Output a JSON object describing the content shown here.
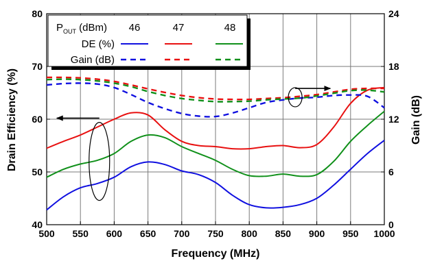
{
  "chart_data": {
    "type": "line",
    "title": "",
    "xlabel": "Frequency (MHz)",
    "ylabel": "Drain Efficiency (%)",
    "y2label": "Gain (dB)",
    "xlim": [
      500,
      1000
    ],
    "ylim": [
      40,
      80
    ],
    "y2lim": [
      0,
      24
    ],
    "xticks": [
      "500",
      "550",
      "600",
      "650",
      "700",
      "750",
      "800",
      "850",
      "900",
      "950",
      "1000"
    ],
    "yticks": [
      "40",
      "50",
      "60",
      "70",
      "80"
    ],
    "y2ticks": [
      "0",
      "6",
      "12",
      "18",
      "24"
    ],
    "grid": true,
    "legend": {
      "placement": "top-left",
      "header_label": "P",
      "header_sub": "OUT",
      "header_unit": " (dBm)",
      "columns": [
        "46",
        "47",
        "48"
      ],
      "rows": [
        "DE (%)",
        "Gain (dB)"
      ]
    },
    "colors": {
      "46": "#1010e0",
      "47": "#e81010",
      "48": "#10901a"
    },
    "series": [
      {
        "name": "DE (%)",
        "pout": "46",
        "axis": "left",
        "dash": false,
        "x": [
          500,
          525,
          550,
          575,
          600,
          625,
          650,
          675,
          700,
          725,
          750,
          775,
          800,
          825,
          850,
          875,
          900,
          925,
          950,
          975,
          1000
        ],
        "y": [
          42.8,
          45.3,
          47.0,
          47.8,
          49.0,
          51.0,
          51.9,
          51.4,
          50.2,
          49.5,
          48.0,
          45.6,
          43.8,
          43.2,
          43.3,
          43.8,
          45.0,
          47.5,
          50.5,
          53.5,
          56.0
        ]
      },
      {
        "name": "DE (%)",
        "pout": "47",
        "axis": "left",
        "dash": false,
        "x": [
          500,
          525,
          550,
          575,
          600,
          625,
          650,
          675,
          700,
          725,
          750,
          775,
          800,
          825,
          850,
          875,
          900,
          925,
          950,
          975,
          1000
        ],
        "y": [
          54.5,
          55.8,
          57.0,
          58.5,
          60.0,
          61.2,
          60.8,
          58.0,
          55.8,
          55.0,
          54.8,
          54.4,
          54.4,
          54.8,
          55.0,
          54.6,
          55.2,
          58.5,
          63.0,
          65.5,
          66.0
        ]
      },
      {
        "name": "DE (%)",
        "pout": "48",
        "axis": "left",
        "dash": false,
        "x": [
          500,
          525,
          550,
          575,
          600,
          625,
          650,
          675,
          700,
          725,
          750,
          775,
          800,
          825,
          850,
          875,
          900,
          925,
          950,
          975,
          1000
        ],
        "y": [
          49.0,
          50.5,
          51.5,
          52.2,
          53.5,
          55.8,
          57.0,
          56.5,
          54.8,
          53.5,
          52.2,
          50.5,
          49.3,
          49.2,
          49.6,
          49.2,
          49.5,
          52.0,
          55.8,
          58.8,
          61.5
        ]
      },
      {
        "name": "Gain (dB)",
        "pout": "46",
        "axis": "right",
        "dash": true,
        "x": [
          500,
          525,
          550,
          575,
          600,
          625,
          650,
          675,
          700,
          725,
          750,
          775,
          800,
          825,
          850,
          875,
          900,
          925,
          950,
          975,
          1000
        ],
        "y": [
          15.9,
          16.05,
          16.1,
          16.0,
          15.6,
          14.8,
          13.9,
          13.2,
          12.65,
          12.35,
          12.3,
          12.7,
          13.3,
          13.9,
          14.2,
          14.4,
          14.5,
          14.7,
          14.75,
          14.6,
          13.3
        ]
      },
      {
        "name": "Gain (dB)",
        "pout": "47",
        "axis": "right",
        "dash": true,
        "x": [
          500,
          525,
          550,
          575,
          600,
          625,
          650,
          675,
          700,
          725,
          750,
          775,
          800,
          825,
          850,
          875,
          900,
          925,
          950,
          975,
          1000
        ],
        "y": [
          16.75,
          16.75,
          16.7,
          16.55,
          16.3,
          15.9,
          15.45,
          15.05,
          14.7,
          14.45,
          14.3,
          14.25,
          14.25,
          14.35,
          14.45,
          14.6,
          14.8,
          15.1,
          15.4,
          15.5,
          15.5
        ]
      },
      {
        "name": "Gain (dB)",
        "pout": "48",
        "axis": "right",
        "dash": true,
        "x": [
          500,
          525,
          550,
          575,
          600,
          625,
          650,
          675,
          700,
          725,
          750,
          775,
          800,
          825,
          850,
          875,
          900,
          925,
          950,
          975,
          1000
        ],
        "y": [
          16.5,
          16.55,
          16.5,
          16.35,
          16.1,
          15.7,
          15.15,
          14.7,
          14.35,
          14.15,
          14.0,
          14.0,
          14.05,
          14.2,
          14.3,
          14.4,
          14.65,
          14.95,
          15.25,
          15.3,
          15.1
        ]
      }
    ]
  }
}
